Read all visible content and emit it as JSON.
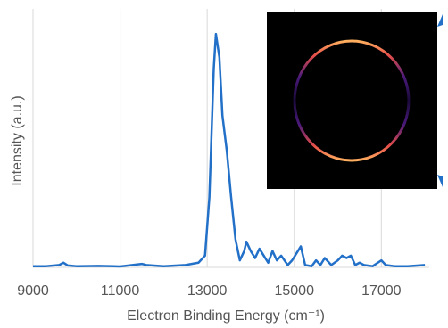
{
  "chart_data": {
    "type": "line",
    "x_label": "Electron Binding Energy (cm⁻¹)",
    "y_label": "Intensity (a.u.)",
    "xlim": [
      9000,
      18100
    ],
    "xticks": [
      9000,
      11000,
      13000,
      15000,
      17000
    ],
    "ylim": [
      0,
      1.05
    ],
    "grid": true,
    "series": [
      {
        "color": "#2270c8",
        "x": [
          9000,
          9300,
          9600,
          9700,
          9800,
          10000,
          10500,
          11000,
          11500,
          11600,
          12000,
          12500,
          12800,
          12950,
          13050,
          13150,
          13200,
          13280,
          13350,
          13450,
          13550,
          13650,
          13750,
          13850,
          13900,
          14000,
          14100,
          14200,
          14300,
          14400,
          14500,
          14600,
          14700,
          14850,
          14950,
          15050,
          15150,
          15250,
          15400,
          15500,
          15600,
          15700,
          15850,
          16000,
          16100,
          16200,
          16300,
          16400,
          16500,
          16600,
          16800,
          17000,
          17100,
          17300,
          17600,
          18000
        ],
        "values": [
          0.005,
          0.005,
          0.01,
          0.02,
          0.008,
          0.005,
          0.006,
          0.004,
          0.015,
          0.01,
          0.005,
          0.01,
          0.02,
          0.05,
          0.3,
          0.85,
          1.0,
          0.9,
          0.65,
          0.5,
          0.3,
          0.12,
          0.03,
          0.07,
          0.11,
          0.07,
          0.04,
          0.08,
          0.05,
          0.02,
          0.07,
          0.03,
          0.05,
          0.01,
          0.03,
          0.06,
          0.09,
          0.01,
          0.005,
          0.03,
          0.01,
          0.04,
          0.01,
          0.03,
          0.05,
          0.04,
          0.05,
          0.01,
          0.02,
          0.01,
          0.005,
          0.03,
          0.01,
          0.005,
          0.005,
          0.01
        ]
      }
    ]
  }
}
